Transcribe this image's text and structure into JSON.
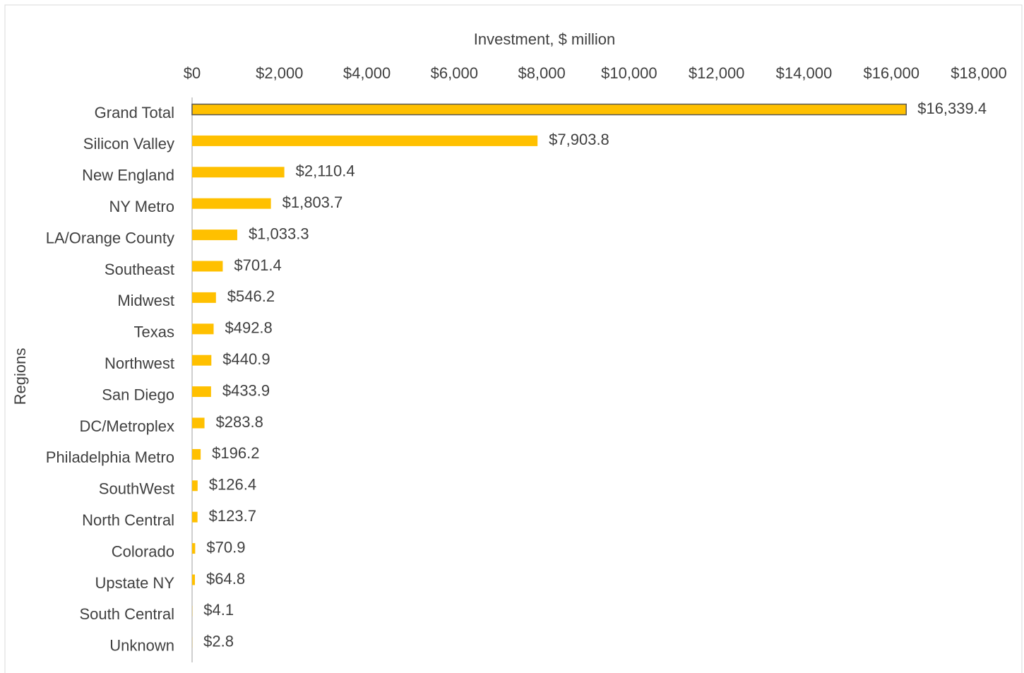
{
  "chart_data": {
    "type": "bar",
    "orientation": "horizontal",
    "xlabel": "Investment, $ million",
    "ylabel": "Regions",
    "categories": [
      "Grand Total",
      "Silicon Valley",
      "New England",
      "NY Metro",
      "LA/Orange County",
      "Southeast",
      "Midwest",
      "Texas",
      "Northwest",
      "San Diego",
      "DC/Metroplex",
      "Philadelphia Metro",
      "SouthWest",
      "North Central",
      "Colorado",
      "Upstate NY",
      "South Central",
      "Unknown"
    ],
    "values": [
      16339.4,
      7903.8,
      2110.4,
      1803.7,
      1033.3,
      701.4,
      546.2,
      492.8,
      440.9,
      433.9,
      283.8,
      196.2,
      126.4,
      123.7,
      70.9,
      64.8,
      4.1,
      2.8
    ],
    "value_labels": [
      "$16,339.4",
      "$7,903.8",
      "$2,110.4",
      "$1,803.7",
      "$1,033.3",
      "$701.4",
      "$546.2",
      "$492.8",
      "$440.9",
      "$433.9",
      "$283.8",
      "$196.2",
      "$126.4",
      "$123.7",
      "$70.9",
      "$64.8",
      "$4.1",
      "$2.8"
    ],
    "color": "#ffc000",
    "xlim": [
      0,
      18000
    ],
    "xticks": [
      {
        "value": 0,
        "label": "$0"
      },
      {
        "value": 2000,
        "label": "$2,000"
      },
      {
        "value": 4000,
        "label": "$4,000"
      },
      {
        "value": 6000,
        "label": "$6,000"
      },
      {
        "value": 8000,
        "label": "$8,000"
      },
      {
        "value": 10000,
        "label": "$10,000"
      },
      {
        "value": 12000,
        "label": "$12,000"
      },
      {
        "value": 14000,
        "label": "$14,000"
      },
      {
        "value": 16000,
        "label": "$16,000"
      },
      {
        "value": 18000,
        "label": "$18,000"
      }
    ],
    "grid": false
  }
}
